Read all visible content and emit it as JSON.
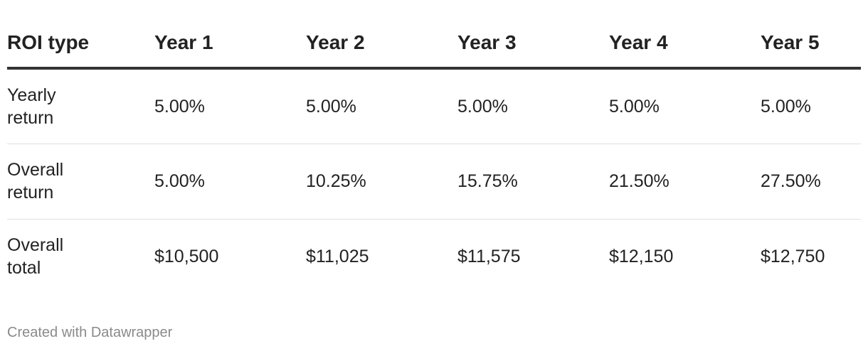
{
  "table": {
    "headers": [
      "ROI type",
      "Year 1",
      "Year 2",
      "Year 3",
      "Year 4",
      "Year 5"
    ],
    "rows": [
      [
        "Yearly return",
        "5.00%",
        "5.00%",
        "5.00%",
        "5.00%",
        "5.00%"
      ],
      [
        "Overall return",
        "5.00%",
        "10.25%",
        "15.75%",
        "21.50%",
        "27.50%"
      ],
      [
        "Overall total",
        "$10,500",
        "$11,025",
        "$11,575",
        "$12,150",
        "$12,750"
      ]
    ]
  },
  "footer": "Created with Datawrapper"
}
